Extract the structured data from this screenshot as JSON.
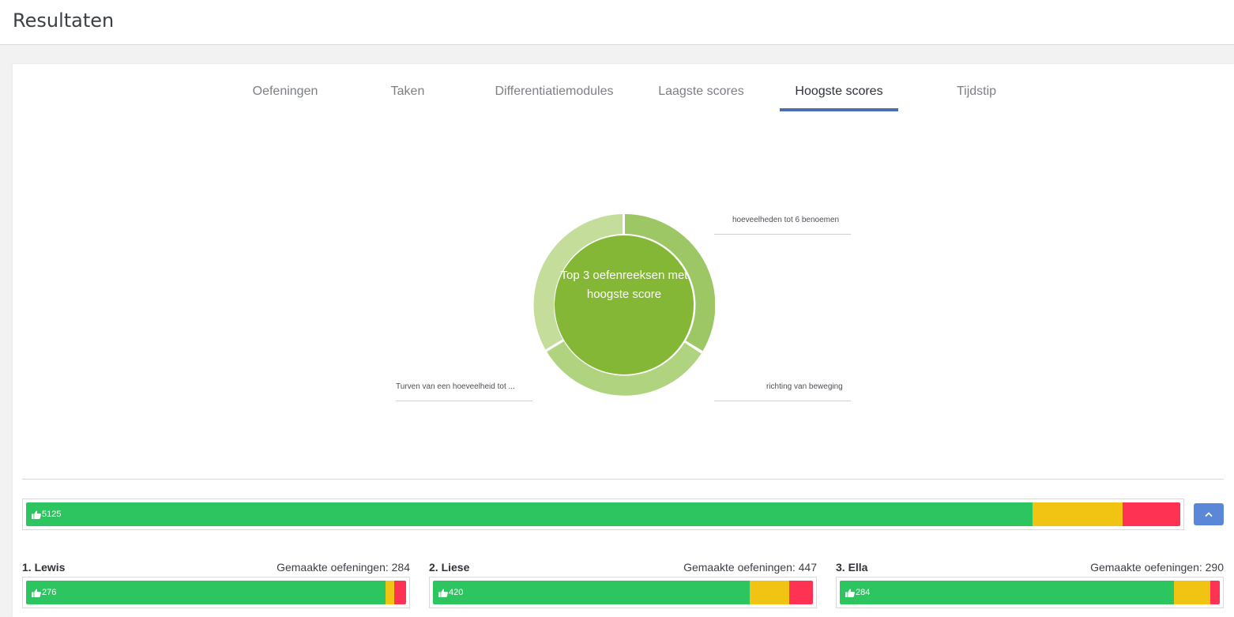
{
  "header": {
    "title": "Resultaten"
  },
  "tabs": [
    {
      "label": "Oefeningen",
      "active": false
    },
    {
      "label": "Taken",
      "active": false
    },
    {
      "label": "Differentiatiemodules",
      "active": false
    },
    {
      "label": "Laagste scores",
      "active": false
    },
    {
      "label": "Hoogste scores",
      "active": true
    },
    {
      "label": "Tijdstip",
      "active": false
    }
  ],
  "donut": {
    "center_text": "Top 3 oefenreeksen met hoogste score",
    "segments": [
      {
        "label": "hoeveelheden tot 6 benoemen",
        "color": "#9dc765"
      },
      {
        "label": "richting van beweging",
        "color": "#b0d37f"
      },
      {
        "label": "Turven van een hoeveelheid tot ...",
        "color": "#c4dd9b"
      }
    ],
    "center_color": "#83b735"
  },
  "overall_bar": {
    "count": "5125",
    "green_fraction": 0.872,
    "yellow_fraction": 0.078,
    "red_fraction": 0.05
  },
  "collapse_button": {
    "icon": "chevron-up-icon"
  },
  "students": [
    {
      "rank_name": "1. Lewis",
      "made_label": "Gemaakte oefeningen: 284",
      "count": "276",
      "green_fraction": 0.945,
      "yellow_fraction": 0.023,
      "red_fraction": 0.032
    },
    {
      "rank_name": "2. Liese",
      "made_label": "Gemaakte oefeningen: 447",
      "count": "420",
      "green_fraction": 0.834,
      "yellow_fraction": 0.104,
      "red_fraction": 0.062
    },
    {
      "rank_name": "3. Ella",
      "made_label": "Gemaakte oefeningen: 290",
      "count": "284",
      "green_fraction": 0.88,
      "yellow_fraction": 0.096,
      "red_fraction": 0.024
    }
  ],
  "colors": {
    "green": "#2dc560",
    "yellow": "#f1c414",
    "red": "#fe3253",
    "tab_accent": "#4a6fae",
    "button": "#5b87d8"
  }
}
